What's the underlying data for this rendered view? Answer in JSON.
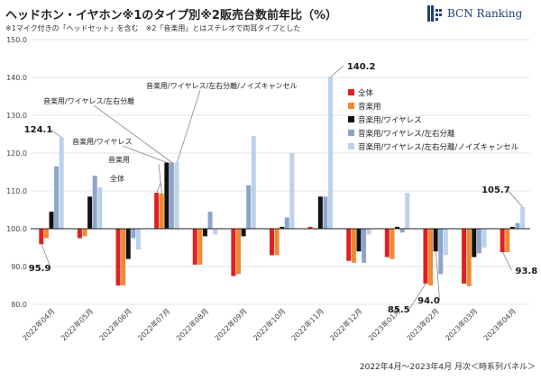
{
  "header": {
    "title": "ヘッドホン・イヤホン※1のタイプ別※2販売台数前年比（%）",
    "subtitle": "※1マイク付きの「ヘッドセット」を含む　※2「音楽用」とはステレオで両耳タイプとした",
    "logo_text": "BCN Ranking",
    "footer": "2022年4月～2023年4月 月次＜時系列パネル＞"
  },
  "colors": {
    "all": "#e02020",
    "music": "#f08830",
    "wireless": "#111111",
    "separated": "#8fa4cc",
    "nc": "#bcd2ea",
    "baseline": "#222222",
    "grid": "#e6e6e6",
    "logo": "#1f3f7a"
  },
  "chart_data": {
    "type": "bar",
    "ylim": [
      80,
      150
    ],
    "yticks": [
      "150.0",
      "140.0",
      "130.0",
      "120.0",
      "110.0",
      "100.0",
      "90.0",
      "80.0"
    ],
    "grid": true,
    "legend_position": "right",
    "categories": [
      "2022年04月",
      "2022年05月",
      "2022年06月",
      "2022年07月",
      "2022年08月",
      "2022年09月",
      "2022年10月",
      "2022年11月",
      "2022年12月",
      "2023年01月",
      "2023年02月",
      "2023年03月",
      "2023年04月"
    ],
    "series": [
      {
        "name": "全体",
        "values": [
          95.9,
          97.5,
          85.0,
          109.5,
          90.5,
          87.5,
          93.0,
          100.5,
          91.5,
          92.5,
          85.5,
          85.5,
          93.8
        ]
      },
      {
        "name": "音楽用",
        "values": [
          97.5,
          98.0,
          85.0,
          109.3,
          90.5,
          88.0,
          93.0,
          100.0,
          91.0,
          92.0,
          85.0,
          84.8,
          93.8
        ]
      },
      {
        "name": "音楽用/ワイヤレス",
        "values": [
          104.5,
          108.5,
          92.0,
          117.5,
          98.0,
          98.0,
          100.5,
          108.5,
          94.0,
          100.5,
          94.0,
          92.5,
          100.5
        ]
      },
      {
        "name": "音楽用/ワイヤレス/左右分離",
        "values": [
          116.5,
          114.0,
          97.5,
          117.5,
          104.5,
          111.5,
          103.0,
          108.5,
          91.0,
          99.0,
          88.0,
          93.5,
          101.5
        ]
      },
      {
        "name": "音楽用/ワイヤレス/左右分離/ノイズキャンセル",
        "values": [
          124.1,
          111.0,
          94.5,
          117.5,
          98.5,
          124.5,
          120.0,
          140.2,
          98.5,
          109.5,
          93.0,
          95.0,
          105.7
        ]
      }
    ],
    "callouts": [
      "95.9",
      "124.1",
      "140.2",
      "85.5",
      "94.0",
      "105.7",
      "93.8"
    ],
    "annotations": [
      "音楽用/ワイヤレス/左右分離/ノイズキャンセル",
      "音楽用/ワイヤレス/左右分離",
      "音楽用/ワイヤレス",
      "音楽用",
      "全体"
    ]
  }
}
